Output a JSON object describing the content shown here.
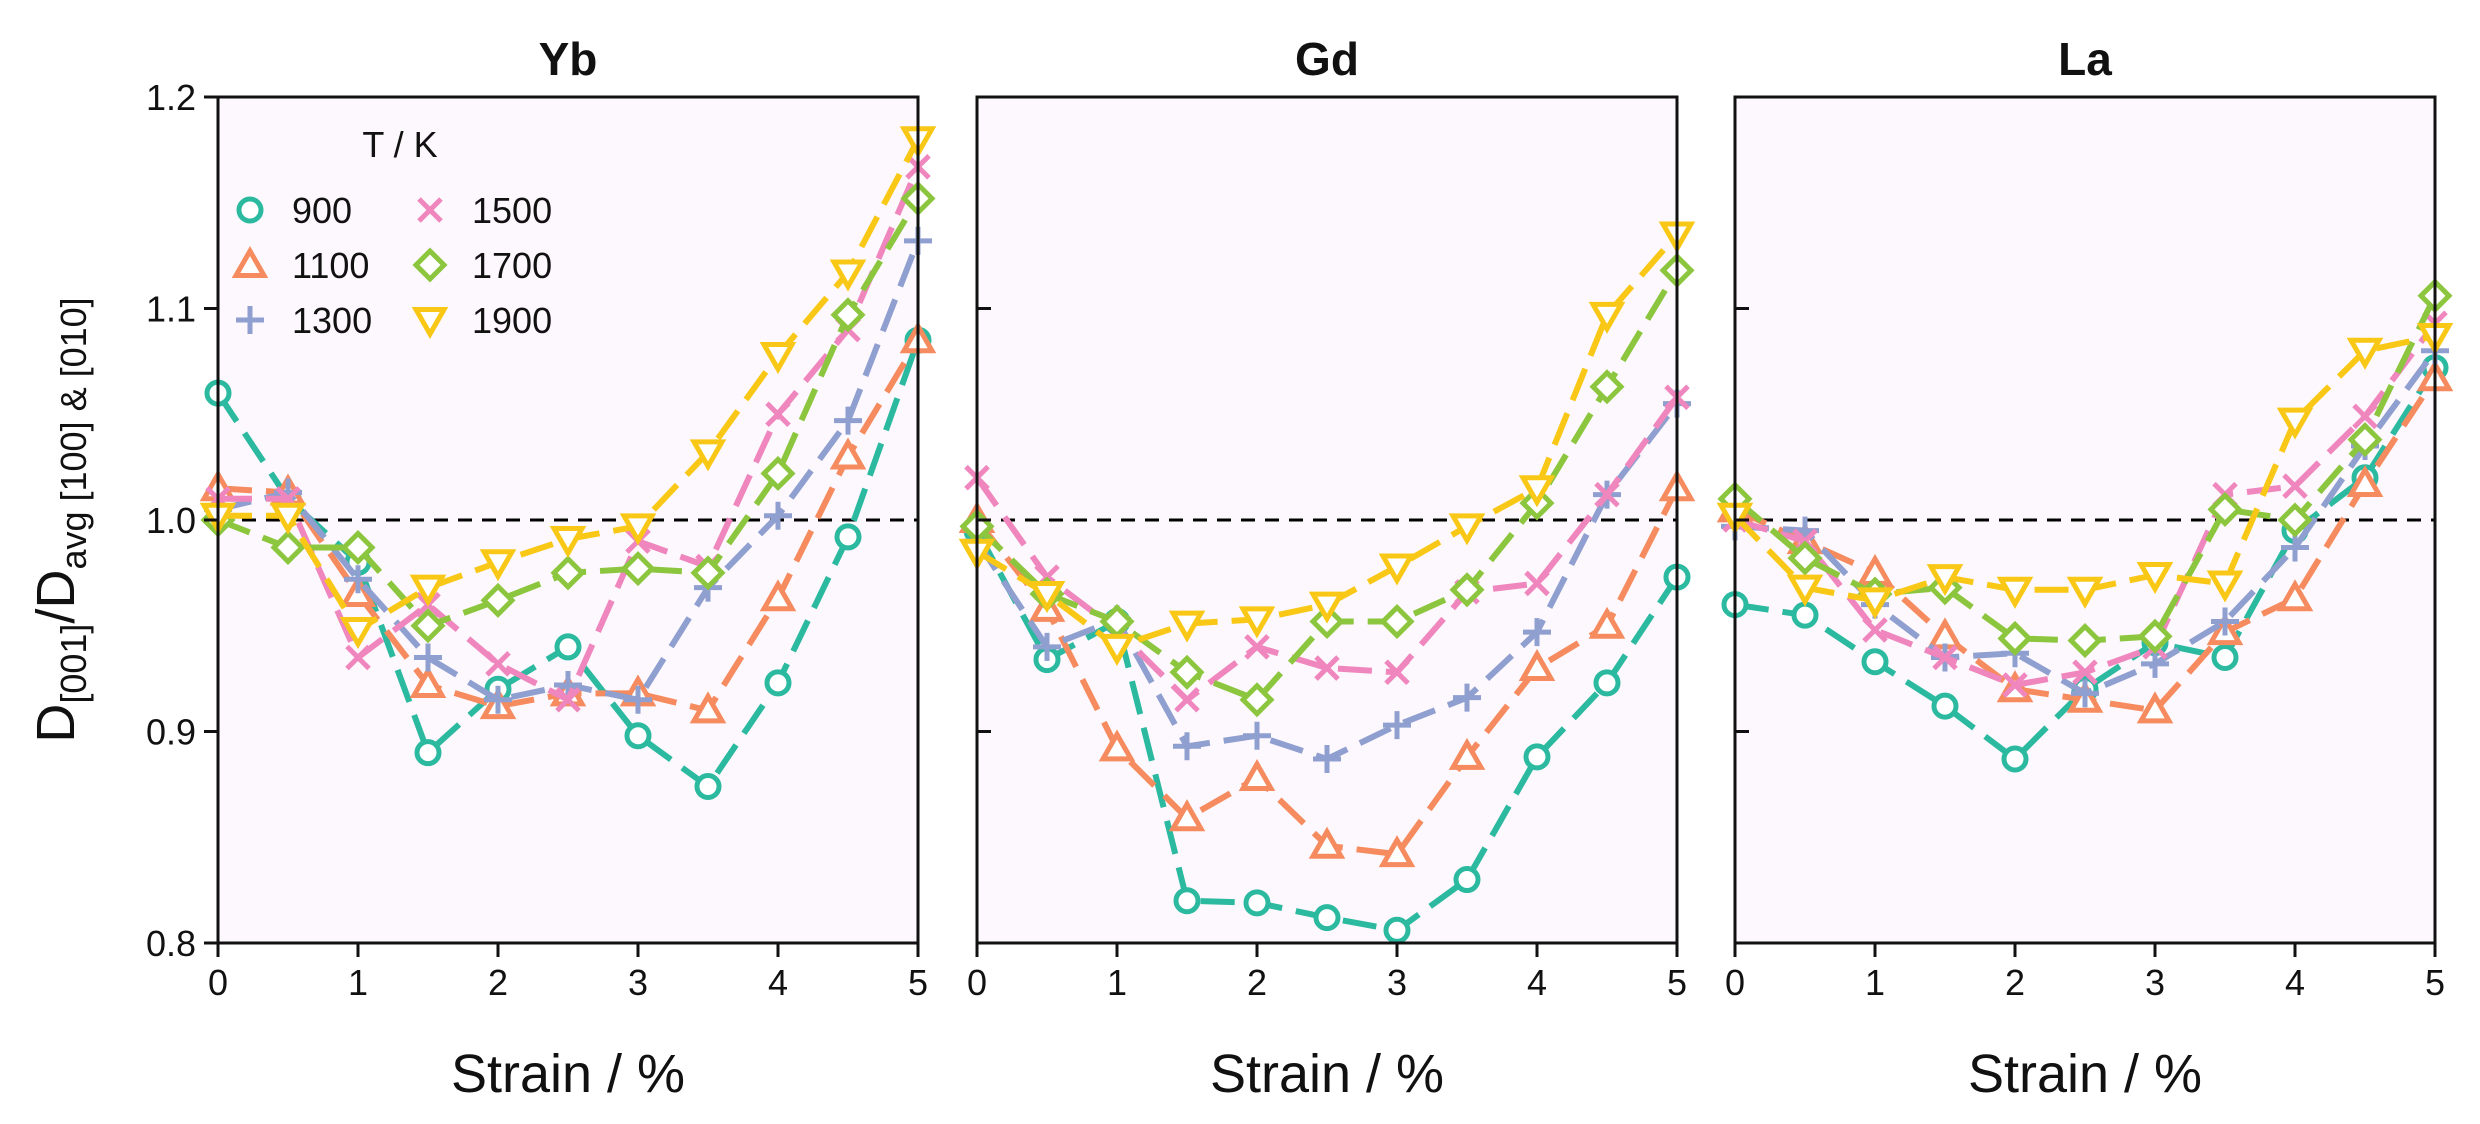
{
  "chart_data": {
    "type": "line",
    "ylabel": "D[001]/Davg [100] & [010]",
    "ylabel_parts": {
      "D": "D",
      "sub1": "[001]",
      "slash": "/",
      "D2": "D",
      "sub2": "avg [100] & [010]"
    },
    "xlabel": "Strain / %",
    "ylim": [
      0.8,
      1.2
    ],
    "xlim": [
      0,
      5
    ],
    "x_ticks": [
      "0",
      "1",
      "2",
      "3",
      "4",
      "5"
    ],
    "y_ticks": [
      "0.8",
      "0.9",
      "1.0",
      "1.1",
      "1.2"
    ],
    "reference_line": 1.0,
    "legend": {
      "title": "T / K",
      "placement": "top-left of first panel",
      "entries": [
        {
          "label": "900",
          "color": "#2bb9a0",
          "marker": "circle"
        },
        {
          "label": "1100",
          "color": "#f58b5e",
          "marker": "triangle-up"
        },
        {
          "label": "1300",
          "color": "#8f9fcf",
          "marker": "plus"
        },
        {
          "label": "1500",
          "color": "#ef86bd",
          "marker": "cross"
        },
        {
          "label": "1700",
          "color": "#8cc63e",
          "marker": "diamond"
        },
        {
          "label": "1900",
          "color": "#f9c816",
          "marker": "triangle-down"
        }
      ]
    },
    "x": [
      0,
      0.5,
      1,
      1.5,
      2,
      2.5,
      3,
      3.5,
      4,
      4.5,
      5
    ],
    "panels": [
      {
        "title": "Yb",
        "series": [
          {
            "name": "900",
            "values": [
              1.06,
              1.01,
              0.98,
              0.89,
              0.92,
              0.94,
              0.898,
              0.874,
              0.923,
              0.992,
              1.085
            ]
          },
          {
            "name": "1100",
            "values": [
              1.015,
              1.013,
              0.965,
              0.922,
              0.912,
              0.918,
              0.918,
              0.91,
              0.963,
              1.03,
              1.085
            ]
          },
          {
            "name": "1300",
            "values": [
              1.005,
              1.013,
              0.972,
              0.935,
              0.915,
              0.922,
              0.915,
              0.968,
              1.002,
              1.047,
              1.132
            ]
          },
          {
            "name": "1500",
            "values": [
              1.01,
              1.01,
              0.935,
              0.96,
              0.932,
              0.915,
              0.99,
              0.978,
              1.05,
              1.09,
              1.167
            ]
          },
          {
            "name": "1700",
            "values": [
              1.0,
              0.987,
              0.987,
              0.95,
              0.962,
              0.975,
              0.977,
              0.975,
              1.022,
              1.097,
              1.152
            ]
          },
          {
            "name": "1900",
            "values": [
              1.002,
              1.002,
              0.948,
              0.968,
              0.98,
              0.991,
              0.997,
              1.032,
              1.078,
              1.117,
              1.18
            ]
          }
        ]
      },
      {
        "title": "Gd",
        "series": [
          {
            "name": "900",
            "values": [
              0.995,
              0.934,
              0.952,
              0.82,
              0.819,
              0.812,
              0.806,
              0.83,
              0.888,
              0.923,
              0.973
            ]
          },
          {
            "name": "1100",
            "values": [
              1.0,
              0.958,
              0.892,
              0.859,
              0.878,
              0.846,
              0.842,
              0.888,
              0.93,
              0.95,
              1.015
            ]
          },
          {
            "name": "1300",
            "values": [
              0.99,
              0.94,
              0.953,
              0.893,
              0.898,
              0.887,
              0.903,
              0.916,
              0.947,
              1.012,
              1.055
            ]
          },
          {
            "name": "1500",
            "values": [
              1.02,
              0.973,
              0.948,
              0.915,
              0.94,
              0.93,
              0.928,
              0.966,
              0.97,
              1.012,
              1.058
            ]
          },
          {
            "name": "1700",
            "values": [
              0.997,
              0.965,
              0.952,
              0.928,
              0.915,
              0.952,
              0.952,
              0.967,
              1.008,
              1.063,
              1.118
            ]
          },
          {
            "name": "1900",
            "values": [
              0.985,
              0.965,
              0.94,
              0.951,
              0.953,
              0.96,
              0.978,
              0.997,
              1.015,
              1.097,
              1.135
            ]
          }
        ]
      },
      {
        "title": "La",
        "series": [
          {
            "name": "900",
            "values": [
              0.96,
              0.955,
              0.933,
              0.912,
              0.887,
              0.92,
              0.942,
              0.935,
              0.995,
              1.02,
              1.072
            ]
          },
          {
            "name": "1100",
            "values": [
              1.005,
              0.99,
              0.975,
              0.945,
              0.92,
              0.915,
              0.91,
              0.947,
              0.963,
              1.017,
              1.067
            ]
          },
          {
            "name": "1300",
            "values": [
              0.997,
              0.995,
              0.96,
              0.935,
              0.937,
              0.918,
              0.932,
              0.952,
              0.987,
              1.035,
              1.08
            ]
          },
          {
            "name": "1500",
            "values": [
              1.0,
              0.99,
              0.948,
              0.935,
              0.922,
              0.928,
              0.94,
              1.012,
              1.016,
              1.049,
              1.093
            ]
          },
          {
            "name": "1700",
            "values": [
              1.01,
              0.982,
              0.965,
              0.968,
              0.944,
              0.943,
              0.945,
              1.005,
              1.0,
              1.038,
              1.106
            ]
          },
          {
            "name": "1900",
            "values": [
              1.002,
              0.968,
              0.962,
              0.973,
              0.967,
              0.967,
              0.974,
              0.97,
              1.047,
              1.08,
              1.087
            ]
          }
        ]
      }
    ]
  }
}
